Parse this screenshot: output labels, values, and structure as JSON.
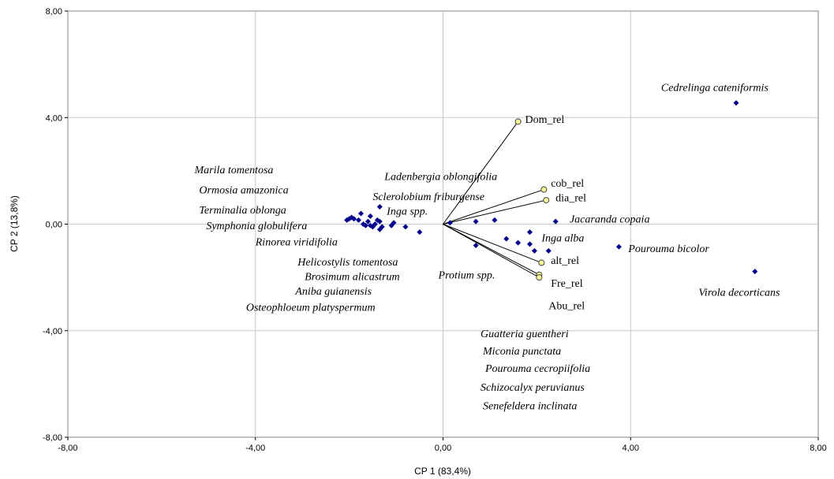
{
  "chart_data": {
    "type": "scatter",
    "title": "",
    "xlabel": "CP 1 (83,4%)",
    "ylabel": "CP 2 (13,8%)",
    "xlim": [
      -8,
      8
    ],
    "ylim": [
      -8,
      8
    ],
    "x_ticks": [
      -8,
      -4,
      0,
      4,
      8
    ],
    "y_ticks": [
      -8,
      -4,
      0,
      4,
      8
    ],
    "x_tick_labels": [
      "-8,00",
      "-4,00",
      "0,00",
      "4,00",
      "8,00"
    ],
    "y_tick_labels": [
      "-8,00",
      "-4,00",
      "0,00",
      "4,00",
      "8,00"
    ],
    "grid": true,
    "colors": {
      "points": "#00008b",
      "vector_marker_fill": "#ffff99",
      "grid": "#c8c8c8",
      "frame": "#808080"
    },
    "species_points": [
      [
        6.25,
        4.55
      ],
      [
        6.65,
        -1.78
      ],
      [
        3.75,
        -0.85
      ],
      [
        2.4,
        0.1
      ],
      [
        1.1,
        0.15
      ],
      [
        0.7,
        0.1
      ],
      [
        1.85,
        -0.3
      ],
      [
        1.6,
        -0.7
      ],
      [
        1.85,
        -0.75
      ],
      [
        1.95,
        -1.0
      ],
      [
        2.25,
        -1.0
      ],
      [
        1.35,
        -0.55
      ],
      [
        0.7,
        -0.8
      ],
      [
        0.15,
        0.05
      ],
      [
        -0.5,
        -0.3
      ],
      [
        -0.8,
        -0.1
      ],
      [
        -1.05,
        0.05
      ],
      [
        -1.1,
        -0.05
      ],
      [
        -1.3,
        -0.1
      ],
      [
        -1.35,
        -0.2
      ],
      [
        -1.35,
        0.1
      ],
      [
        -1.4,
        0.15
      ],
      [
        -1.35,
        0.65
      ],
      [
        -1.55,
        -0.05
      ],
      [
        -1.6,
        0.1
      ],
      [
        -1.7,
        0.0
      ],
      [
        -1.75,
        0.4
      ],
      [
        -1.8,
        0.15
      ],
      [
        -1.9,
        0.2
      ],
      [
        -1.95,
        0.25
      ],
      [
        -2.0,
        0.2
      ],
      [
        -2.05,
        0.15
      ],
      [
        -1.45,
        0.0
      ],
      [
        -1.5,
        -0.1
      ],
      [
        -1.65,
        -0.05
      ],
      [
        -1.55,
        0.3
      ]
    ],
    "variables": [
      {
        "name": "Dom_rel",
        "x": 1.6,
        "y": 3.85
      },
      {
        "name": "cob_rel",
        "x": 2.15,
        "y": 1.3
      },
      {
        "name": "dia_rel",
        "x": 2.2,
        "y": 0.9
      },
      {
        "name": "alt_rel",
        "x": 2.1,
        "y": -1.45
      },
      {
        "name": "Fre_rel",
        "x": 2.05,
        "y": -1.9
      },
      {
        "name": "Abu_rel",
        "x": 2.05,
        "y": -2.0
      }
    ],
    "variable_labels": [
      {
        "text": "Dom_rel",
        "x": 1.75,
        "y": 3.95
      },
      {
        "text": "cob_rel",
        "x": 2.3,
        "y": 1.55
      },
      {
        "text": "dia_rel",
        "x": 2.4,
        "y": 1.0
      },
      {
        "text": "alt_rel",
        "x": 2.3,
        "y": -1.35
      },
      {
        "text": "Fre_rel",
        "x": 2.3,
        "y": -2.2
      },
      {
        "text": "Abu_rel",
        "x": 2.25,
        "y": -3.05
      }
    ],
    "species_labels": [
      {
        "text": "Cedrelinga cateniformis",
        "x": 4.65,
        "y": 5.15
      },
      {
        "text": "Marila tomentosa",
        "x": -5.3,
        "y": 2.05
      },
      {
        "text": "Ormosia amazonica",
        "x": -5.2,
        "y": 1.3
      },
      {
        "text": "Terminalia oblonga",
        "x": -5.2,
        "y": 0.55
      },
      {
        "text": "Symphonia globulifera",
        "x": -5.05,
        "y": -0.05
      },
      {
        "text": "Rinorea viridifolia",
        "x": -4.0,
        "y": -0.65
      },
      {
        "text": "Helicostylis tomentosa",
        "x": -3.1,
        "y": -1.4
      },
      {
        "text": "Brosimum alicastrum",
        "x": -2.95,
        "y": -1.95
      },
      {
        "text": "Aniba guianensis",
        "x": -3.15,
        "y": -2.5
      },
      {
        "text": "Osteophloeum platyspermum",
        "x": -4.2,
        "y": -3.1
      },
      {
        "text": "Ladenbergia oblongifolia",
        "x": -1.25,
        "y": 1.8
      },
      {
        "text": "Sclerolobium friburgense",
        "x": -1.5,
        "y": 1.05
      },
      {
        "text": "Inga spp.",
        "x": -1.2,
        "y": 0.5
      },
      {
        "text": "Jacaranda copaia",
        "x": 2.7,
        "y": 0.2
      },
      {
        "text": "Inga alba",
        "x": 2.1,
        "y": -0.5
      },
      {
        "text": "Pourouma  bicolor",
        "x": 3.95,
        "y": -0.9
      },
      {
        "text": "Protium spp.",
        "x": -0.1,
        "y": -1.9
      },
      {
        "text": "Virola decorticans",
        "x": 5.45,
        "y": -2.55
      },
      {
        "text": "Guatteria guentheri",
        "x": 0.8,
        "y": -4.1
      },
      {
        "text": "Miconia punctata",
        "x": 0.85,
        "y": -4.75
      },
      {
        "text": "Pourouma cecropiifolia",
        "x": 0.9,
        "y": -5.4
      },
      {
        "text": "Schizocalyx peruvianus",
        "x": 0.8,
        "y": -6.1
      },
      {
        "text": "Senefeldera inclinata",
        "x": 0.85,
        "y": -6.8
      }
    ]
  }
}
